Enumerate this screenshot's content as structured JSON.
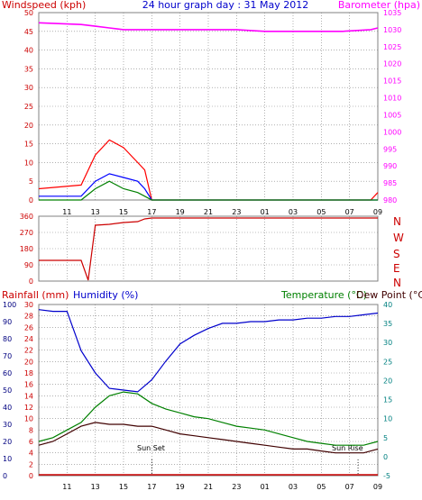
{
  "header": {
    "windspeed_label": "Windspeed (kph)",
    "title": "24 hour graph day : 31 May 2012",
    "barometer_label": "Barometer (hpa)"
  },
  "panel2": {
    "dir_labels": [
      "N",
      "W",
      "S",
      "E",
      "N"
    ]
  },
  "panel3": {
    "rainfall_label": "Rainfall (mm)",
    "humidity_label": "Humidity (%)",
    "temperature_label": "Temperature (°C)",
    "dewpoint_label": "Dew Point (°C)",
    "sunset_label": "Sun Set",
    "sunrise_label": "Sun Rise"
  },
  "colors": {
    "wind": "#ff0000",
    "wind_avg": "#0000ff",
    "wind_calm": "#008000",
    "barometer": "#ff00ff",
    "direction": "#cc0000",
    "humidity": "#0000cc",
    "temperature": "#008000",
    "dewpoint": "#400000",
    "rainfall": "#cc0000",
    "axis_left": "#cc0000",
    "axis_right": "#008080",
    "axis_hum": "#000080",
    "grid": "#808080"
  },
  "chart_data": [
    {
      "type": "line",
      "title": "24 hour graph day : 31 May 2012",
      "x_ticks": [
        "11",
        "13",
        "15",
        "17",
        "19",
        "21",
        "23",
        "01",
        "03",
        "05",
        "07",
        "09"
      ],
      "x": [
        9.0,
        12.0,
        13.0,
        14.0,
        15.0,
        16.0,
        16.5,
        17.0,
        19.0,
        21.0,
        23.0,
        25.0,
        27.0,
        29.0,
        30.5,
        32.5,
        33.0
      ],
      "y_left": {
        "label": "Windspeed (kph)",
        "range": [
          0,
          50
        ],
        "ticks": [
          0,
          5,
          10,
          15,
          20,
          25,
          30,
          35,
          40,
          45,
          50
        ]
      },
      "y_right": {
        "label": "Barometer (hpa)",
        "range": [
          980,
          1035
        ],
        "ticks": [
          980,
          985,
          990,
          995,
          1000,
          1005,
          1010,
          1015,
          1020,
          1025,
          1030,
          1035
        ]
      },
      "series": [
        {
          "axis": "right",
          "values": [
            1032.0,
            1031.5,
            1031.0,
            1030.5,
            1030.0,
            1030.0,
            1030.0,
            1030.0,
            1030.0,
            1030.0,
            1030.0,
            1029.5,
            1029.5,
            1029.5,
            1029.5,
            1030.0,
            1030.5
          ]
        },
        {
          "axis": "left",
          "values": [
            3,
            4,
            12,
            16,
            14,
            10,
            8,
            0,
            0,
            0,
            0,
            0,
            0,
            0,
            0,
            0,
            2
          ]
        },
        {
          "axis": "left",
          "values": [
            1,
            1,
            5,
            7,
            6,
            5,
            3,
            0,
            0,
            0,
            0,
            0,
            0,
            0,
            0,
            0,
            0
          ]
        },
        {
          "axis": "left",
          "values": [
            0,
            0,
            3,
            5,
            3,
            2,
            1,
            0,
            0,
            0,
            0,
            0,
            0,
            0,
            0,
            0,
            0
          ]
        }
      ]
    },
    {
      "type": "line",
      "x_ticks": [],
      "x": [
        9.0,
        12.0,
        12.5,
        13.0,
        14.0,
        15.0,
        16.0,
        16.5,
        17.0,
        20.0,
        25.0,
        30.0,
        33.0
      ],
      "y_left": {
        "range": [
          0,
          360
        ],
        "ticks": [
          0,
          90,
          180,
          270,
          360
        ]
      },
      "y_right": {
        "ticks": [
          "N",
          "W",
          "S",
          "E",
          "N"
        ]
      },
      "series": [
        {
          "values": [
            115,
            115,
            5,
            310,
            315,
            325,
            330,
            345,
            350,
            350,
            350,
            350,
            350
          ]
        }
      ]
    },
    {
      "type": "line",
      "x_ticks": [
        "11",
        "13",
        "15",
        "17",
        "19",
        "21",
        "23",
        "01",
        "03",
        "05",
        "07",
        "09"
      ],
      "x": [
        9.0,
        10.0,
        11.0,
        12.0,
        13.0,
        14.0,
        15.0,
        16.0,
        17.0,
        18.0,
        19.0,
        20.0,
        21.0,
        22.0,
        23.0,
        24.0,
        25.0,
        26.0,
        27.0,
        28.0,
        29.0,
        30.0,
        31.0,
        32.0,
        33.0
      ],
      "y_rain": {
        "label": "Rainfall (mm)",
        "range": [
          0,
          30
        ],
        "ticks": [
          0,
          2,
          4,
          6,
          8,
          10,
          12,
          14,
          16,
          18,
          20,
          22,
          24,
          26,
          28,
          30
        ]
      },
      "y_hum": {
        "label": "Humidity (%)",
        "range": [
          0,
          100
        ],
        "ticks": [
          0,
          10,
          20,
          30,
          40,
          50,
          60,
          70,
          80,
          90,
          100
        ]
      },
      "y_temp": {
        "label": "Temperature (°C)",
        "range": [
          -5,
          40
        ],
        "ticks": [
          -5,
          0,
          5,
          10,
          15,
          20,
          25,
          30,
          35,
          40
        ]
      },
      "annotations": [
        {
          "text": "Sun Set",
          "x": 17.0
        },
        {
          "text": "Sun Rise",
          "x": 31.6
        }
      ],
      "series": [
        {
          "name": "Humidity (%)",
          "axis": "hum",
          "values": [
            97,
            96,
            96,
            73,
            60,
            51,
            50,
            49,
            56,
            67,
            77,
            82,
            86,
            89,
            89,
            90,
            90,
            91,
            91,
            92,
            92,
            93,
            93,
            94,
            95
          ]
        },
        {
          "name": "Temperature (°C)",
          "axis": "temp",
          "values": [
            4,
            5,
            7,
            9,
            13,
            16,
            17,
            16.5,
            14,
            12.5,
            11.5,
            10.5,
            10,
            9,
            8,
            7.5,
            7,
            6,
            5,
            4,
            3.5,
            3,
            3,
            3,
            4
          ]
        },
        {
          "name": "Dew Point (°C)",
          "axis": "temp",
          "values": [
            3,
            4,
            6,
            8,
            9,
            8.5,
            8.5,
            8,
            8,
            7,
            6,
            5.5,
            5,
            4.5,
            4,
            3.5,
            3,
            2.5,
            2,
            2,
            1.5,
            1,
            1,
            1,
            2
          ]
        },
        {
          "name": "Rainfall (mm)",
          "axis": "rain",
          "values": [
            0,
            0,
            0,
            0,
            0,
            0,
            0,
            0,
            0,
            0,
            0,
            0,
            0,
            0,
            0,
            0,
            0,
            0,
            0,
            0,
            0,
            0,
            0,
            0,
            0
          ]
        }
      ]
    }
  ]
}
